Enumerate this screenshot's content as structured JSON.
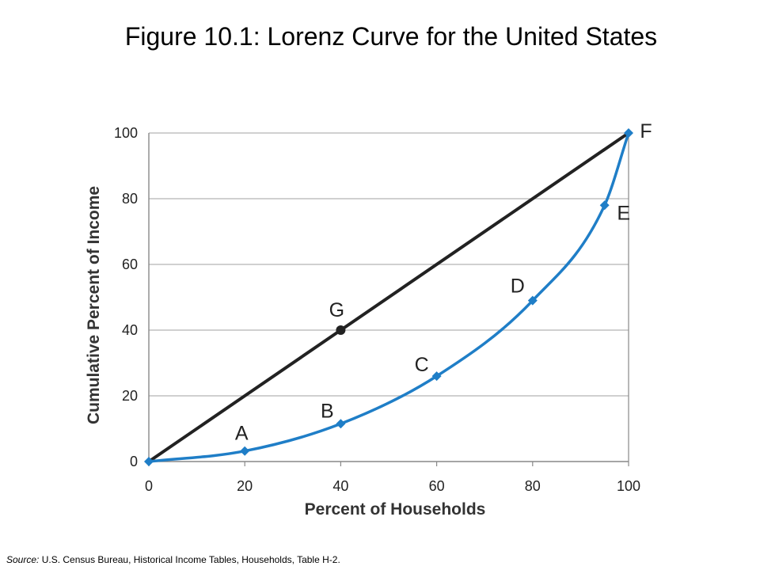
{
  "title": "Figure 10.1: Lorenz Curve for the United States",
  "source": {
    "label": "Source:",
    "text": "U.S. Census Bureau, Historical Income Tables, Households, Table H-2."
  },
  "colors": {
    "lorenz": "#1f7ec7",
    "equality": "#222222",
    "grid": "#b5b5b5",
    "axis": "#888888"
  },
  "chart_data": {
    "type": "line",
    "xlabel": "Percent of Households",
    "ylabel": "Cumulative Percent of Income",
    "xlim": [
      0,
      100
    ],
    "ylim": [
      0,
      100
    ],
    "xticks": [
      "0",
      "20",
      "40",
      "60",
      "80",
      "100"
    ],
    "yticks": [
      "0",
      "20",
      "40",
      "60",
      "80",
      "100"
    ],
    "grid": "horizontal",
    "series": [
      {
        "x": [
          0,
          20,
          40,
          60,
          80,
          95,
          100
        ],
        "y": [
          0,
          3.2,
          11.5,
          26,
          49,
          78,
          100
        ],
        "labels": [
          "",
          "A",
          "B",
          "C",
          "D",
          "E",
          "F"
        ]
      },
      {
        "x": [
          0,
          40,
          100
        ],
        "y": [
          0,
          40,
          100
        ],
        "labels": [
          "",
          "G",
          ""
        ]
      }
    ]
  }
}
